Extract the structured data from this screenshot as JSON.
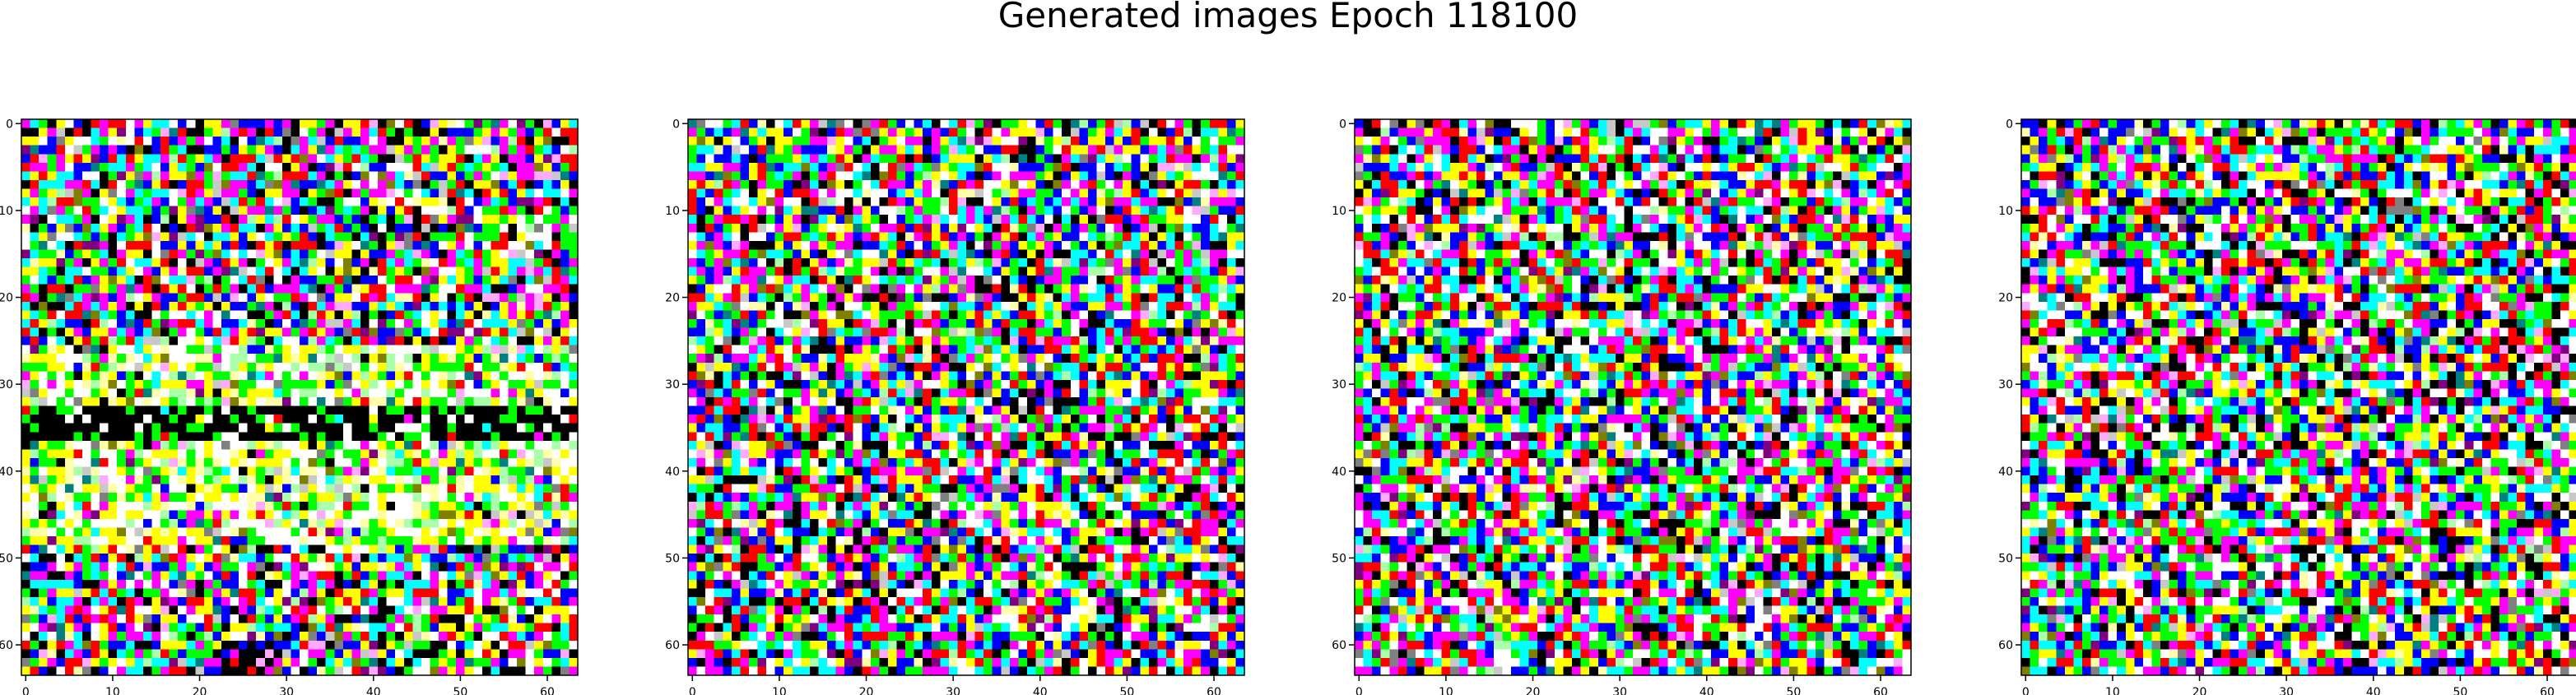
{
  "figure": {
    "title": "Generated images Epoch 118100"
  },
  "palette": {
    "black": "#000000",
    "white": "#ffffff",
    "red": "#ff0000",
    "green": "#00ff00",
    "blue": "#0000ff",
    "yellow": "#ffff00",
    "magenta": "#ff00ff",
    "cyan": "#00ffff",
    "light_gray": "#c8c8c8",
    "gray": "#808080",
    "olive": "#808000",
    "purple": "#800080",
    "teal": "#008080",
    "light_yellow": "#ffffaa",
    "light_green": "#aaffaa",
    "pink": "#ffaaff"
  },
  "chart_data": [
    {
      "type": "heatmap",
      "panel": "generated-image-1",
      "title": "",
      "xlabel": "",
      "ylabel": "",
      "xlim": [
        0,
        64
      ],
      "ylim": [
        64,
        0
      ],
      "grid": false,
      "pixels": "64x64 RGB (values not legible — random-noise generated image, dominant band of black near rows 33–36, white/yellow/green regions rows 26–48)",
      "xticks": [
        0,
        10,
        20,
        30,
        40,
        50,
        60
      ],
      "yticks": [
        0,
        10,
        20,
        30,
        40,
        50,
        60
      ]
    },
    {
      "type": "heatmap",
      "panel": "generated-image-2",
      "title": "",
      "xlabel": "",
      "ylabel": "",
      "xlim": [
        0,
        64
      ],
      "ylim": [
        64,
        0
      ],
      "grid": false,
      "pixels": "64x64 RGB (values not legible — random-noise generated image)",
      "xticks": [
        0,
        10,
        20,
        30,
        40,
        50,
        60
      ],
      "yticks": [
        0,
        10,
        20,
        30,
        40,
        50,
        60
      ]
    },
    {
      "type": "heatmap",
      "panel": "generated-image-3",
      "title": "",
      "xlabel": "",
      "ylabel": "",
      "xlim": [
        0,
        64
      ],
      "ylim": [
        64,
        0
      ],
      "grid": false,
      "pixels": "64x64 RGB (values not legible — random-noise generated image)",
      "xticks": [
        0,
        10,
        20,
        30,
        40,
        50,
        60
      ],
      "yticks": [
        0,
        10,
        20,
        30,
        40,
        50,
        60
      ]
    },
    {
      "type": "heatmap",
      "panel": "generated-image-4",
      "title": "",
      "xlabel": "",
      "ylabel": "",
      "xlim": [
        0,
        64
      ],
      "ylim": [
        64,
        0
      ],
      "grid": false,
      "pixels": "64x64 RGB (values not legible — random-noise generated image)",
      "xticks": [
        0,
        10,
        20,
        30,
        40,
        50,
        60
      ],
      "yticks": [
        0,
        10,
        20,
        30,
        40,
        50,
        60
      ]
    }
  ]
}
